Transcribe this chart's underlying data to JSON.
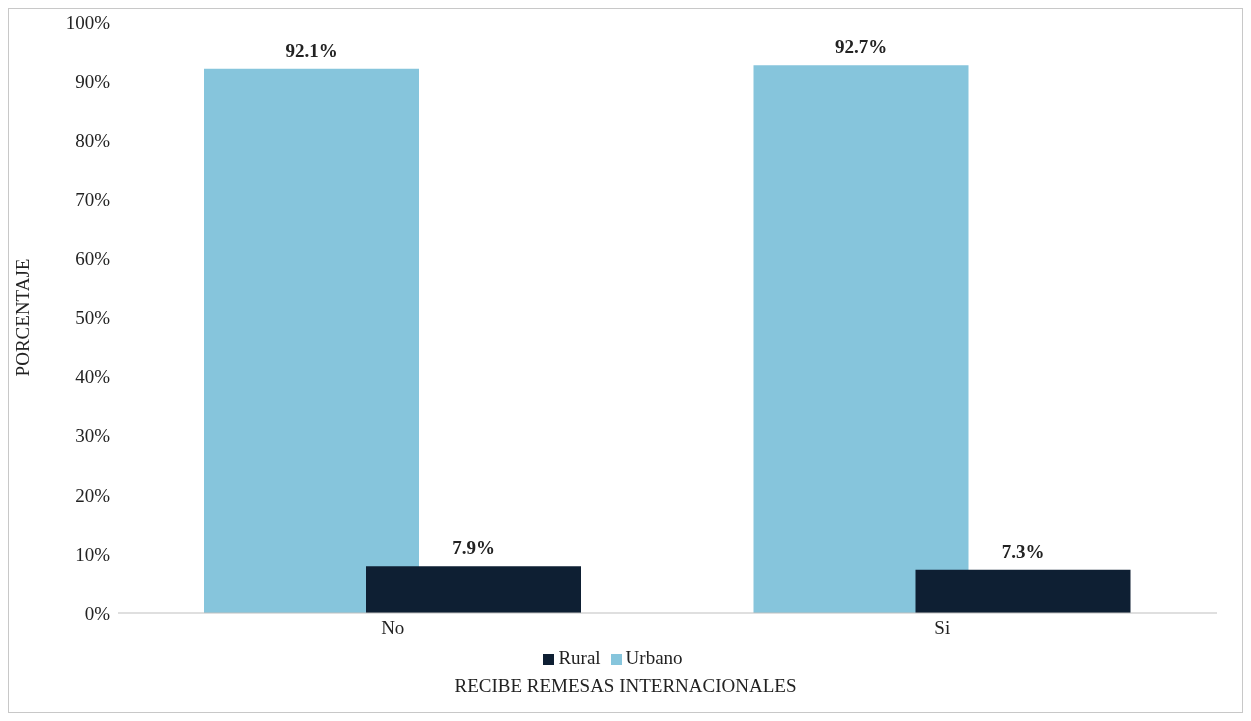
{
  "chart_data": {
    "type": "bar",
    "xlabel": "RECIBE REMESAS INTERNACIONALES",
    "ylabel": "PORCENTAJE",
    "categories": [
      "No",
      "Si"
    ],
    "series": [
      {
        "name": "Urbano",
        "color": "#86c5dc",
        "values": [
          92.1,
          92.7
        ],
        "value_labels": [
          "92.1%",
          "92.7%"
        ]
      },
      {
        "name": "Rural",
        "color": "#0e1f33",
        "values": [
          7.9,
          7.3
        ],
        "value_labels": [
          "7.9%",
          "7.3%"
        ]
      }
    ],
    "ylim": [
      0,
      100
    ],
    "yticks": [
      {
        "value": 0,
        "label": "0%"
      },
      {
        "value": 10,
        "label": "10%"
      },
      {
        "value": 20,
        "label": "20%"
      },
      {
        "value": 30,
        "label": "30%"
      },
      {
        "value": 40,
        "label": "40%"
      },
      {
        "value": 50,
        "label": "50%"
      },
      {
        "value": 60,
        "label": "60%"
      },
      {
        "value": 70,
        "label": "70%"
      },
      {
        "value": 80,
        "label": "80%"
      },
      {
        "value": 90,
        "label": "90%"
      },
      {
        "value": 100,
        "label": "100%"
      }
    ],
    "grid": false,
    "legend": "bottom"
  }
}
